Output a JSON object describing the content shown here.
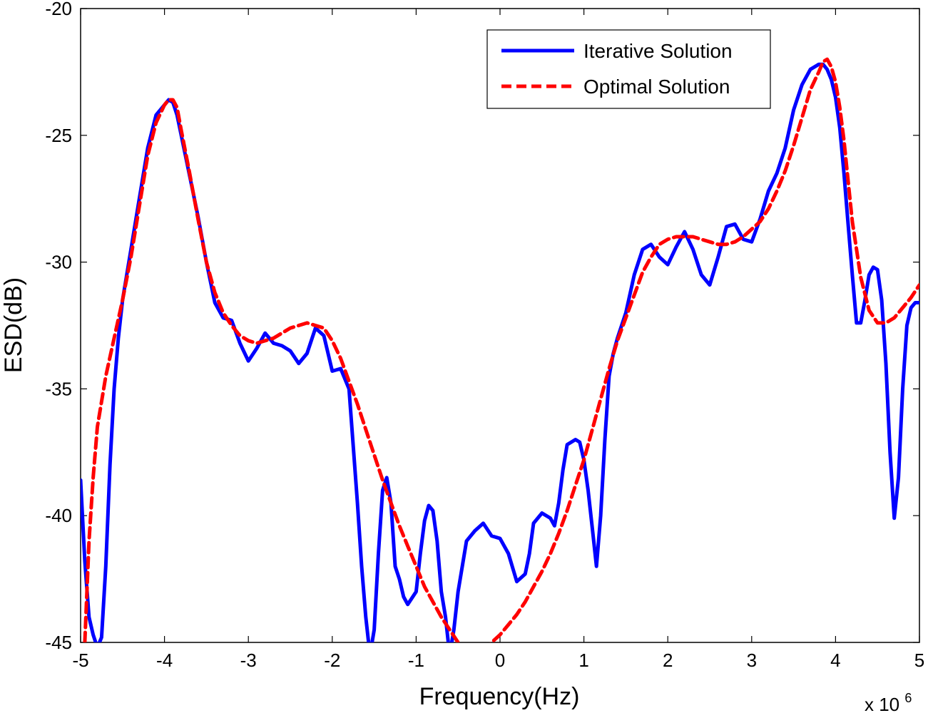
{
  "chart_data": {
    "type": "line",
    "title": "",
    "xlabel": "Frequency(Hz)",
    "ylabel": "ESD(dB)",
    "x_multiplier_label": "x 10",
    "x_multiplier_exponent": "6",
    "xlim": [
      -5,
      5
    ],
    "ylim": [
      -45,
      -20
    ],
    "xticks": [
      -5,
      -4,
      -3,
      -2,
      -1,
      0,
      1,
      2,
      3,
      4,
      5
    ],
    "xtick_labels": [
      "-5",
      "-4",
      "-3",
      "-2",
      "-1",
      "0",
      "1",
      "2",
      "3",
      "4",
      "5"
    ],
    "yticks": [
      -45,
      -40,
      -35,
      -30,
      -25,
      -20
    ],
    "ytick_labels": [
      "-45",
      "-40",
      "-35",
      "-30",
      "-25",
      "-20"
    ],
    "grid": false,
    "legend_position": "top-right",
    "series": [
      {
        "name": "Iterative Solution",
        "color": "#0000ff",
        "style": "solid",
        "x": [
          -5.0,
          -4.95,
          -4.9,
          -4.85,
          -4.8,
          -4.75,
          -4.7,
          -4.65,
          -4.6,
          -4.55,
          -4.5,
          -4.4,
          -4.3,
          -4.2,
          -4.1,
          -4.0,
          -3.95,
          -3.9,
          -3.85,
          -3.8,
          -3.7,
          -3.6,
          -3.5,
          -3.4,
          -3.3,
          -3.2,
          -3.1,
          -3.0,
          -2.9,
          -2.8,
          -2.7,
          -2.6,
          -2.5,
          -2.4,
          -2.3,
          -2.2,
          -2.1,
          -2.0,
          -1.9,
          -1.8,
          -1.7,
          -1.65,
          -1.6,
          -1.55,
          -1.5,
          -1.45,
          -1.4,
          -1.35,
          -1.3,
          -1.25,
          -1.2,
          -1.15,
          -1.1,
          -1.0,
          -0.95,
          -0.9,
          -0.85,
          -0.8,
          -0.75,
          -0.7,
          -0.65,
          -0.6,
          -0.55,
          -0.5,
          -0.45,
          -0.4,
          -0.3,
          -0.2,
          -0.1,
          0.0,
          0.1,
          0.2,
          0.3,
          0.35,
          0.4,
          0.5,
          0.6,
          0.65,
          0.7,
          0.75,
          0.8,
          0.9,
          0.95,
          1.0,
          1.05,
          1.1,
          1.15,
          1.2,
          1.25,
          1.3,
          1.35,
          1.4,
          1.5,
          1.6,
          1.7,
          1.8,
          1.9,
          2.0,
          2.1,
          2.2,
          2.3,
          2.4,
          2.5,
          2.6,
          2.7,
          2.8,
          2.9,
          3.0,
          3.1,
          3.2,
          3.3,
          3.4,
          3.5,
          3.6,
          3.7,
          3.8,
          3.85,
          3.9,
          3.95,
          4.0,
          4.05,
          4.1,
          4.15,
          4.2,
          4.25,
          4.3,
          4.35,
          4.4,
          4.45,
          4.5,
          4.55,
          4.6,
          4.65,
          4.7,
          4.75,
          4.8,
          4.85,
          4.9,
          4.95,
          5.0
        ],
        "y": [
          -38.6,
          -41.8,
          -44.0,
          -44.7,
          -45.2,
          -44.8,
          -42.0,
          -38.0,
          -35.0,
          -33.0,
          -31.5,
          -29.5,
          -27.5,
          -25.5,
          -24.2,
          -23.8,
          -23.6,
          -23.7,
          -24.2,
          -25.0,
          -26.6,
          -28.2,
          -30.0,
          -31.6,
          -32.2,
          -32.3,
          -33.2,
          -33.9,
          -33.4,
          -32.8,
          -33.2,
          -33.3,
          -33.5,
          -34.0,
          -33.6,
          -32.6,
          -32.9,
          -34.3,
          -34.2,
          -35.0,
          -39.5,
          -42.0,
          -44.0,
          -45.5,
          -44.5,
          -41.5,
          -39.0,
          -38.5,
          -39.5,
          -42.0,
          -42.5,
          -43.2,
          -43.5,
          -43.0,
          -41.5,
          -40.2,
          -39.6,
          -39.8,
          -41.0,
          -43.0,
          -44.0,
          -45.5,
          -44.5,
          -43.0,
          -42.0,
          -41.0,
          -40.6,
          -40.3,
          -40.8,
          -40.9,
          -41.5,
          -42.6,
          -42.3,
          -41.5,
          -40.3,
          -39.9,
          -40.1,
          -40.4,
          -39.5,
          -38.2,
          -37.2,
          -37.0,
          -37.1,
          -37.8,
          -39.0,
          -40.5,
          -42.0,
          -40.0,
          -37.0,
          -34.5,
          -33.6,
          -33.0,
          -32.0,
          -30.5,
          -29.5,
          -29.3,
          -29.8,
          -30.1,
          -29.4,
          -28.8,
          -29.5,
          -30.5,
          -30.9,
          -29.8,
          -28.6,
          -28.5,
          -29.1,
          -29.2,
          -28.3,
          -27.2,
          -26.5,
          -25.5,
          -24.0,
          -23.0,
          -22.4,
          -22.2,
          -22.2,
          -22.4,
          -22.8,
          -23.5,
          -24.7,
          -26.5,
          -28.5,
          -30.5,
          -32.4,
          -32.4,
          -31.5,
          -30.5,
          -30.2,
          -30.3,
          -31.5,
          -34.0,
          -37.5,
          -40.1,
          -38.5,
          -35.0,
          -32.5,
          -31.8,
          -31.6,
          -31.6
        ]
      },
      {
        "name": "Optimal Solution",
        "color": "#ff0000",
        "style": "dashed",
        "x": [
          -4.95,
          -4.9,
          -4.85,
          -4.8,
          -4.7,
          -4.6,
          -4.5,
          -4.4,
          -4.3,
          -4.2,
          -4.1,
          -4.0,
          -3.95,
          -3.9,
          -3.85,
          -3.8,
          -3.7,
          -3.6,
          -3.5,
          -3.4,
          -3.3,
          -3.2,
          -3.1,
          -3.0,
          -2.9,
          -2.8,
          -2.7,
          -2.6,
          -2.5,
          -2.4,
          -2.3,
          -2.2,
          -2.1,
          -2.0,
          -1.9,
          -1.8,
          -1.7,
          -1.6,
          -1.5,
          -1.4,
          -1.3,
          -1.2,
          -1.1,
          -1.0,
          -0.9,
          -0.8,
          -0.7,
          -0.6,
          -0.5,
          -0.4,
          -0.35,
          -0.1,
          0.0,
          0.1,
          0.2,
          0.3,
          0.4,
          0.5,
          0.6,
          0.7,
          0.8,
          0.9,
          1.0,
          1.1,
          1.2,
          1.3,
          1.4,
          1.5,
          1.6,
          1.7,
          1.8,
          1.9,
          2.0,
          2.1,
          2.2,
          2.3,
          2.4,
          2.5,
          2.6,
          2.7,
          2.8,
          2.9,
          3.0,
          3.1,
          3.2,
          3.3,
          3.4,
          3.5,
          3.6,
          3.7,
          3.8,
          3.85,
          3.9,
          3.95,
          4.0,
          4.05,
          4.1,
          4.15,
          4.2,
          4.3,
          4.4,
          4.5,
          4.6,
          4.7,
          4.8,
          4.9,
          5.0
        ],
        "y": [
          -45.0,
          -41.0,
          -38.5,
          -36.5,
          -34.5,
          -33.0,
          -31.5,
          -29.8,
          -27.8,
          -25.8,
          -24.5,
          -23.8,
          -23.6,
          -23.6,
          -23.9,
          -24.8,
          -26.5,
          -28.3,
          -30.0,
          -31.2,
          -32.0,
          -32.5,
          -32.9,
          -33.1,
          -33.2,
          -33.1,
          -33.0,
          -32.8,
          -32.6,
          -32.5,
          -32.4,
          -32.5,
          -32.6,
          -33.1,
          -33.8,
          -34.7,
          -35.6,
          -36.6,
          -37.6,
          -38.6,
          -39.5,
          -40.4,
          -41.2,
          -42.0,
          -42.8,
          -43.4,
          -44.0,
          -44.5,
          -45.0,
          -45.5,
          -46.0,
          -45.0,
          -44.7,
          -44.3,
          -43.9,
          -43.4,
          -42.8,
          -42.2,
          -41.5,
          -40.7,
          -39.8,
          -38.8,
          -37.8,
          -36.6,
          -35.4,
          -34.2,
          -33.1,
          -32.2,
          -31.3,
          -30.4,
          -29.8,
          -29.3,
          -29.1,
          -29.0,
          -29.0,
          -29.0,
          -29.1,
          -29.2,
          -29.3,
          -29.3,
          -29.2,
          -29.0,
          -28.7,
          -28.4,
          -27.9,
          -27.2,
          -26.4,
          -25.4,
          -24.3,
          -23.2,
          -22.5,
          -22.1,
          -22.0,
          -22.3,
          -22.9,
          -23.9,
          -25.2,
          -26.8,
          -28.4,
          -30.6,
          -31.9,
          -32.4,
          -32.4,
          -32.2,
          -31.8,
          -31.4,
          -30.9
        ]
      }
    ]
  }
}
